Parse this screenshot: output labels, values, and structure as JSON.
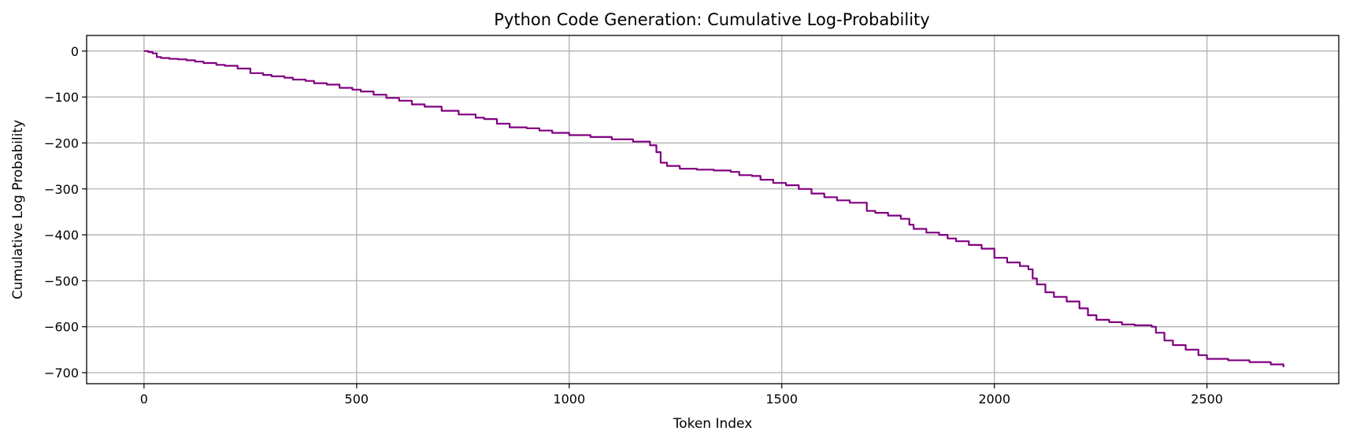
{
  "chart_data": {
    "type": "line",
    "title": "Python Code Generation: Cumulative Log-Probability",
    "xlabel": "Token Index",
    "ylabel": "Cumulative Log Probability",
    "xlim": [
      -135,
      2810
    ],
    "ylim": [
      -724,
      34
    ],
    "xticks": [
      0,
      500,
      1000,
      1500,
      2000,
      2500
    ],
    "yticks": [
      0,
      -100,
      -200,
      -300,
      -400,
      -500,
      -600,
      -700
    ],
    "grid": true,
    "legend": "none",
    "series": [
      {
        "color": "#800080",
        "x": [
          0,
          10,
          20,
          30,
          40,
          60,
          80,
          100,
          120,
          140,
          170,
          190,
          220,
          250,
          280,
          300,
          330,
          350,
          380,
          400,
          430,
          460,
          490,
          510,
          540,
          570,
          600,
          630,
          660,
          700,
          740,
          780,
          800,
          830,
          860,
          900,
          930,
          960,
          1000,
          1050,
          1100,
          1150,
          1190,
          1205,
          1215,
          1230,
          1260,
          1300,
          1340,
          1380,
          1400,
          1430,
          1450,
          1480,
          1510,
          1540,
          1570,
          1600,
          1630,
          1660,
          1700,
          1720,
          1750,
          1780,
          1800,
          1810,
          1840,
          1870,
          1890,
          1910,
          1940,
          1970,
          2000,
          2030,
          2060,
          2080,
          2090,
          2100,
          2120,
          2140,
          2170,
          2200,
          2220,
          2240,
          2270,
          2300,
          2330,
          2370,
          2380,
          2400,
          2420,
          2450,
          2480,
          2500,
          2550,
          2600,
          2650,
          2680
        ],
        "y": [
          0,
          -2,
          -5,
          -13,
          -15,
          -17,
          -18,
          -20,
          -23,
          -26,
          -30,
          -32,
          -38,
          -48,
          -52,
          -55,
          -58,
          -62,
          -65,
          -70,
          -73,
          -80,
          -84,
          -88,
          -95,
          -102,
          -108,
          -116,
          -121,
          -130,
          -138,
          -145,
          -148,
          -158,
          -166,
          -168,
          -173,
          -178,
          -183,
          -187,
          -192,
          -197,
          -205,
          -220,
          -243,
          -250,
          -256,
          -258,
          -260,
          -263,
          -270,
          -272,
          -280,
          -287,
          -292,
          -300,
          -310,
          -318,
          -325,
          -330,
          -348,
          -352,
          -358,
          -365,
          -378,
          -387,
          -395,
          -400,
          -408,
          -414,
          -422,
          -430,
          -450,
          -460,
          -468,
          -475,
          -495,
          -508,
          -525,
          -535,
          -545,
          -560,
          -575,
          -585,
          -590,
          -595,
          -597,
          -600,
          -613,
          -630,
          -640,
          -650,
          -662,
          -670,
          -673,
          -677,
          -682,
          -688
        ]
      }
    ]
  }
}
